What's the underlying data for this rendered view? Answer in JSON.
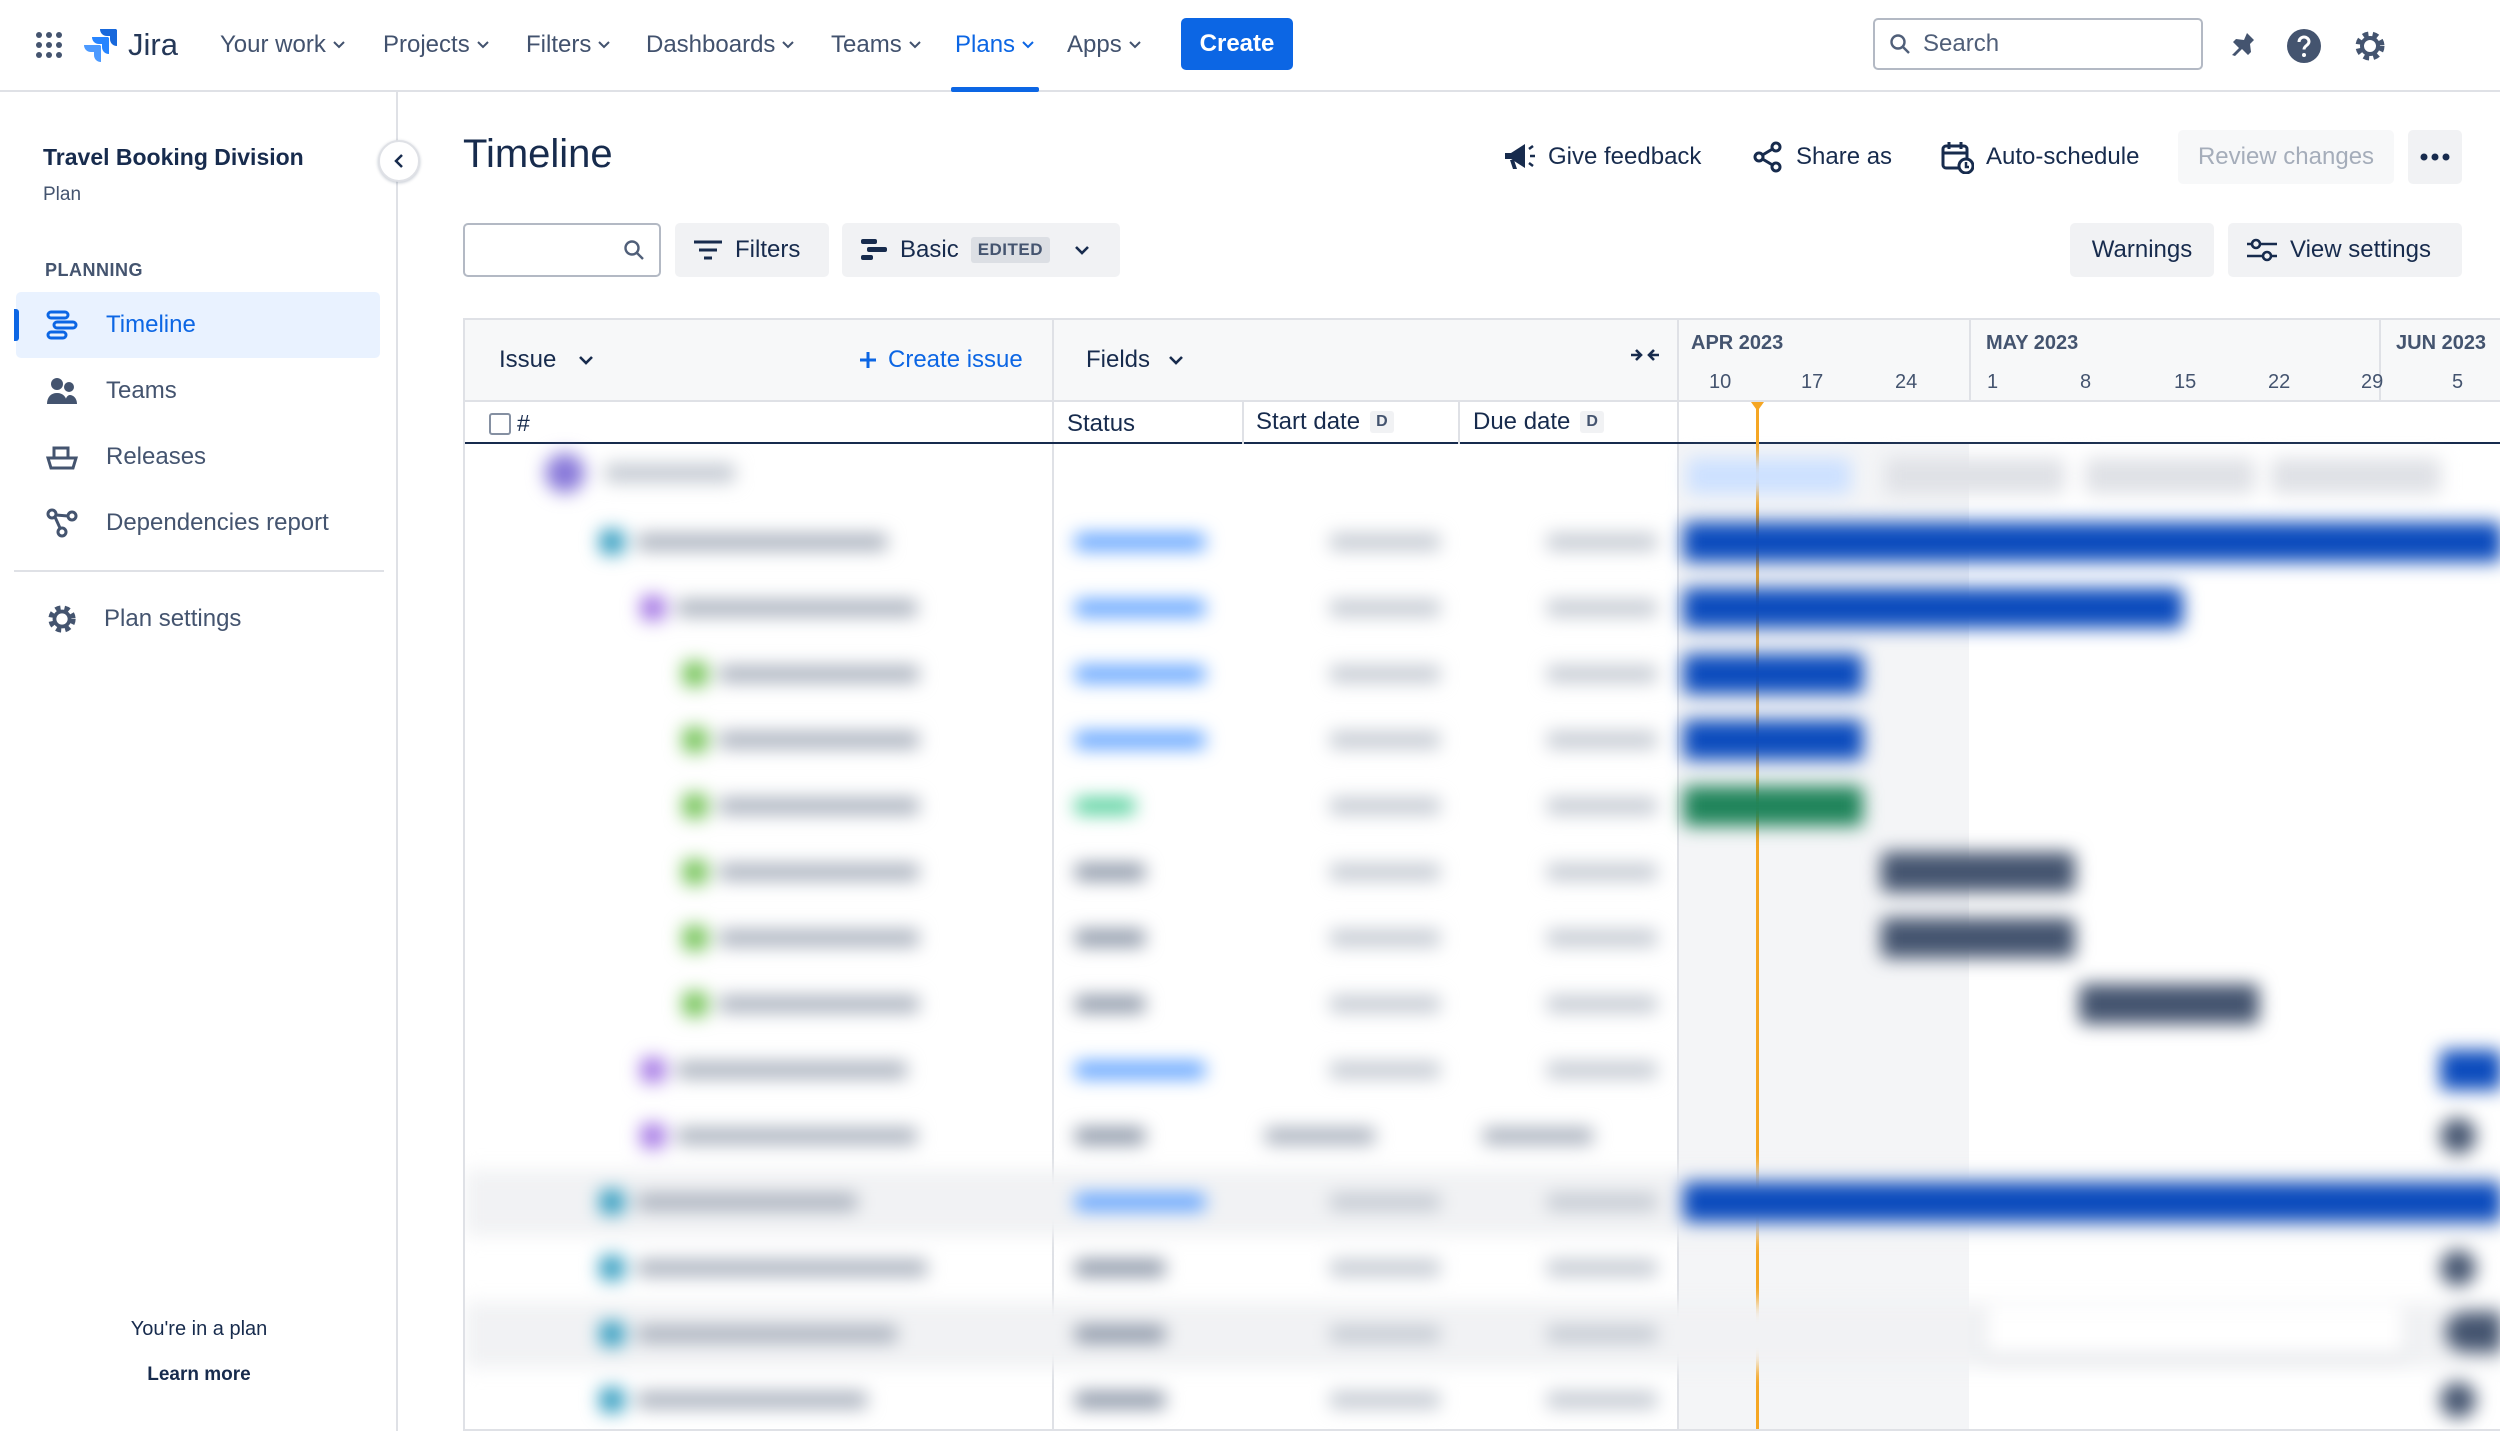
{
  "topnav": {
    "app_name": "Jira",
    "items": [
      {
        "label": "Your work"
      },
      {
        "label": "Projects"
      },
      {
        "label": "Filters"
      },
      {
        "label": "Dashboards"
      },
      {
        "label": "Teams"
      },
      {
        "label": "Plans",
        "active": true
      },
      {
        "label": "Apps"
      }
    ],
    "create_label": "Create",
    "search_placeholder": "Search"
  },
  "sidebar": {
    "plan_name": "Travel Booking Division",
    "plan_type": "Plan",
    "section_title": "PLANNING",
    "items": [
      {
        "label": "Timeline",
        "icon": "timeline-icon",
        "active": true
      },
      {
        "label": "Teams",
        "icon": "teams-icon"
      },
      {
        "label": "Releases",
        "icon": "releases-icon"
      },
      {
        "label": "Dependencies report",
        "icon": "dependencies-icon"
      }
    ],
    "settings_label": "Plan settings",
    "footer_text": "You're in a plan",
    "footer_link": "Learn more"
  },
  "header": {
    "title": "Timeline",
    "give_feedback": "Give feedback",
    "share_as": "Share as",
    "auto_schedule": "Auto-schedule",
    "review_changes": "Review changes"
  },
  "toolbar": {
    "filters_label": "Filters",
    "view_label": "Basic",
    "view_badge": "EDITED",
    "warnings_label": "Warnings",
    "view_settings_label": "View settings"
  },
  "grid": {
    "issue_header": "Issue",
    "create_issue": "Create issue",
    "fields_header": "Fields",
    "hash_label": "#",
    "status_header": "Status",
    "start_date_header": "Start date",
    "due_date_header": "Due date",
    "date_badge": "D"
  },
  "timeline": {
    "months": [
      {
        "label": "APR 2023"
      },
      {
        "label": "MAY 2023"
      },
      {
        "label": "JUN 2023"
      }
    ],
    "weeks": [
      "10",
      "17",
      "24",
      "1",
      "8",
      "15",
      "22",
      "29",
      "5"
    ]
  },
  "colors": {
    "brand": "#0c66e4",
    "today_marker": "#f5a623",
    "bar_in_progress": "#0b4bbd",
    "bar_done": "#1f845a",
    "bar_todo": "#44546f"
  }
}
